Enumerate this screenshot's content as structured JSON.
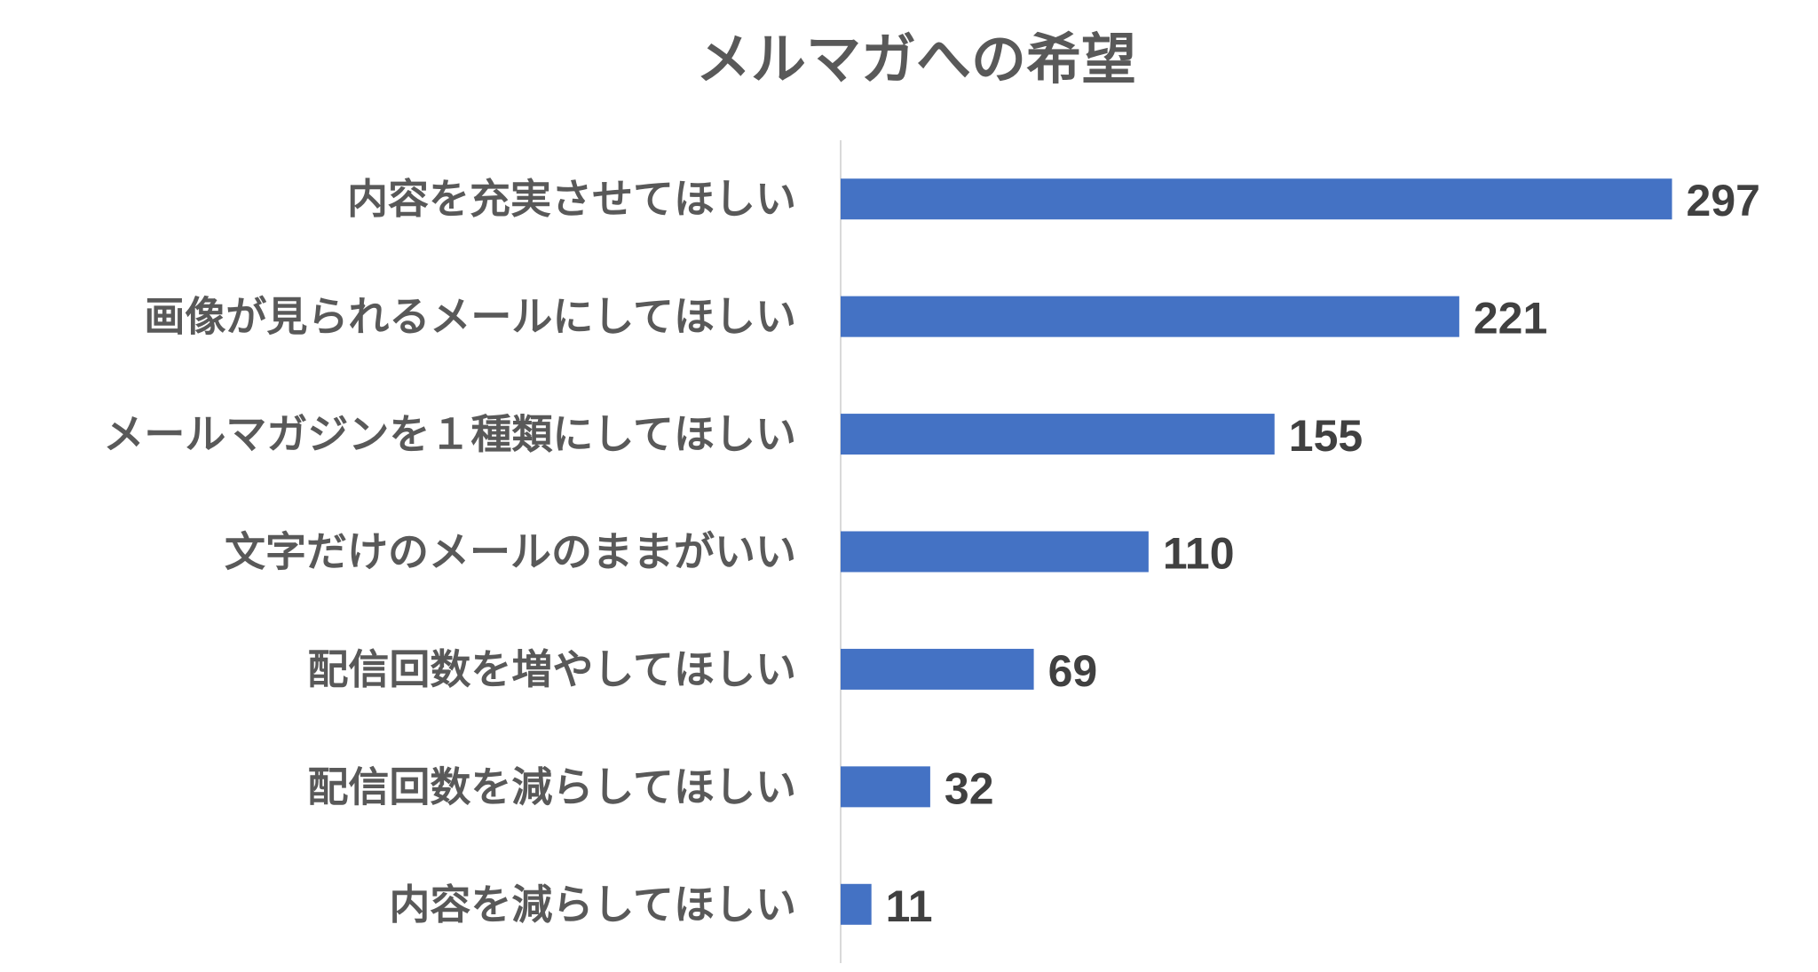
{
  "chart_data": {
    "type": "bar",
    "orientation": "horizontal",
    "title": "メルマガへの希望",
    "xlabel": "",
    "ylabel": "",
    "categories": [
      "内容を充実させてほしい",
      "画像が見られるメールにしてほしい",
      "メールマガジンを１種類にしてほしい",
      "文字だけのメールのままがいい",
      "配信回数を増やしてほしい",
      "配信回数を減らしてほしい",
      "内容を減らしてほしい"
    ],
    "values": [
      297,
      221,
      155,
      110,
      69,
      32,
      11
    ],
    "xlim": [
      0,
      300
    ],
    "data_labels": [
      "297",
      "221",
      "155",
      "110",
      "69",
      "32",
      "11"
    ],
    "grid": false,
    "legend": "none",
    "bar_color": "#4472c4"
  }
}
